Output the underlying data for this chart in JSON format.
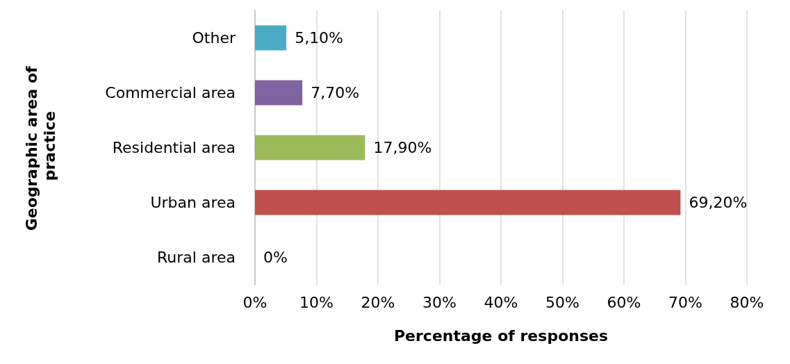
{
  "chart_data": {
    "type": "bar",
    "orientation": "horizontal",
    "xlabel": "Percentage of responses",
    "ylabel": "Geographic area of practice",
    "categories": [
      "Other",
      "Commercial area",
      "Residential area",
      "Urban area",
      "Rural area"
    ],
    "values": [
      5.1,
      7.7,
      17.9,
      69.2,
      0
    ],
    "colors": [
      "#4bacc6",
      "#8064a2",
      "#9bbb59",
      "#c0504d",
      null
    ],
    "value_labels": [
      "5,10%",
      "7,70%",
      "17,90%",
      "69,20%",
      "0%"
    ],
    "xlim": [
      0,
      80
    ],
    "xticks": [
      {
        "value": 0,
        "label": "0%"
      },
      {
        "value": 10,
        "label": "10%"
      },
      {
        "value": 20,
        "label": "20%"
      },
      {
        "value": 30,
        "label": "30%"
      },
      {
        "value": 40,
        "label": "40%"
      },
      {
        "value": 50,
        "label": "50%"
      },
      {
        "value": 60,
        "label": "60%"
      },
      {
        "value": 70,
        "label": "70%"
      },
      {
        "value": 80,
        "label": "80%"
      }
    ],
    "grid": "x"
  }
}
